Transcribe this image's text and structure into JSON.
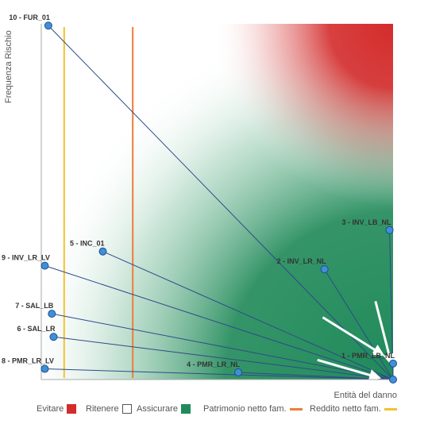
{
  "chart_data": {
    "type": "scatter",
    "xlabel": "Entità del danno",
    "ylabel": "Frequenza Rischio",
    "xlim": [
      0,
      10
    ],
    "ylim": [
      0,
      10
    ],
    "target": {
      "x": 10,
      "y": 0
    },
    "points": [
      {
        "label": "10 - FUR_01",
        "x": 0.2,
        "y": 9.95
      },
      {
        "label": "3 - INV_LB_NL",
        "x": 9.9,
        "y": 4.2
      },
      {
        "label": "5 - INC_01",
        "x": 1.75,
        "y": 3.6
      },
      {
        "label": "2 - INV_LR_NL",
        "x": 8.05,
        "y": 3.1
      },
      {
        "label": "9 - INV_LR_LV",
        "x": 0.1,
        "y": 3.2
      },
      {
        "label": "7 - SAL_LB",
        "x": 0.3,
        "y": 1.85
      },
      {
        "label": "6 - SAL_LR",
        "x": 0.35,
        "y": 1.2
      },
      {
        "label": "1 - PMR_LB_NL",
        "x": 10.0,
        "y": 0.45
      },
      {
        "label": "4 - PMR_LR_NL",
        "x": 5.6,
        "y": 0.2
      },
      {
        "label": "8 - PMR_LR_LV",
        "x": 0.1,
        "y": 0.3
      }
    ],
    "thresholds": [
      {
        "name": "Patrimonio netto fam.",
        "x": 2.6,
        "color": "#ee7d3a"
      },
      {
        "name": "Reddito netto fam.",
        "x": 0.65,
        "color": "#f2c232"
      }
    ],
    "arrows": [
      {
        "from": [
          8.0,
          1.75
        ],
        "to": [
          9.7,
          0.7
        ]
      },
      {
        "from": [
          9.5,
          2.2
        ],
        "to": [
          9.95,
          0.45
        ]
      },
      {
        "from": [
          7.85,
          0.55
        ],
        "to": [
          9.6,
          0.05
        ]
      }
    ],
    "legend": [
      {
        "name": "Evitare",
        "color": "#d42b2b",
        "kind": "box"
      },
      {
        "name": "Ritenere",
        "color": "#ffffff",
        "kind": "box"
      },
      {
        "name": "Assicurare",
        "color": "#1f8a5b",
        "kind": "box"
      },
      {
        "name": "Patrimonio netto fam.",
        "color": "#ee7d3a",
        "kind": "line"
      },
      {
        "name": "Reddito netto fam.",
        "color": "#f2c232",
        "kind": "line"
      }
    ],
    "colors": {
      "point_fill": "#3f8fd9",
      "point_stroke": "#1e4f8c",
      "connector": "#2f4a8a",
      "axis": "#aaaaaa"
    }
  }
}
